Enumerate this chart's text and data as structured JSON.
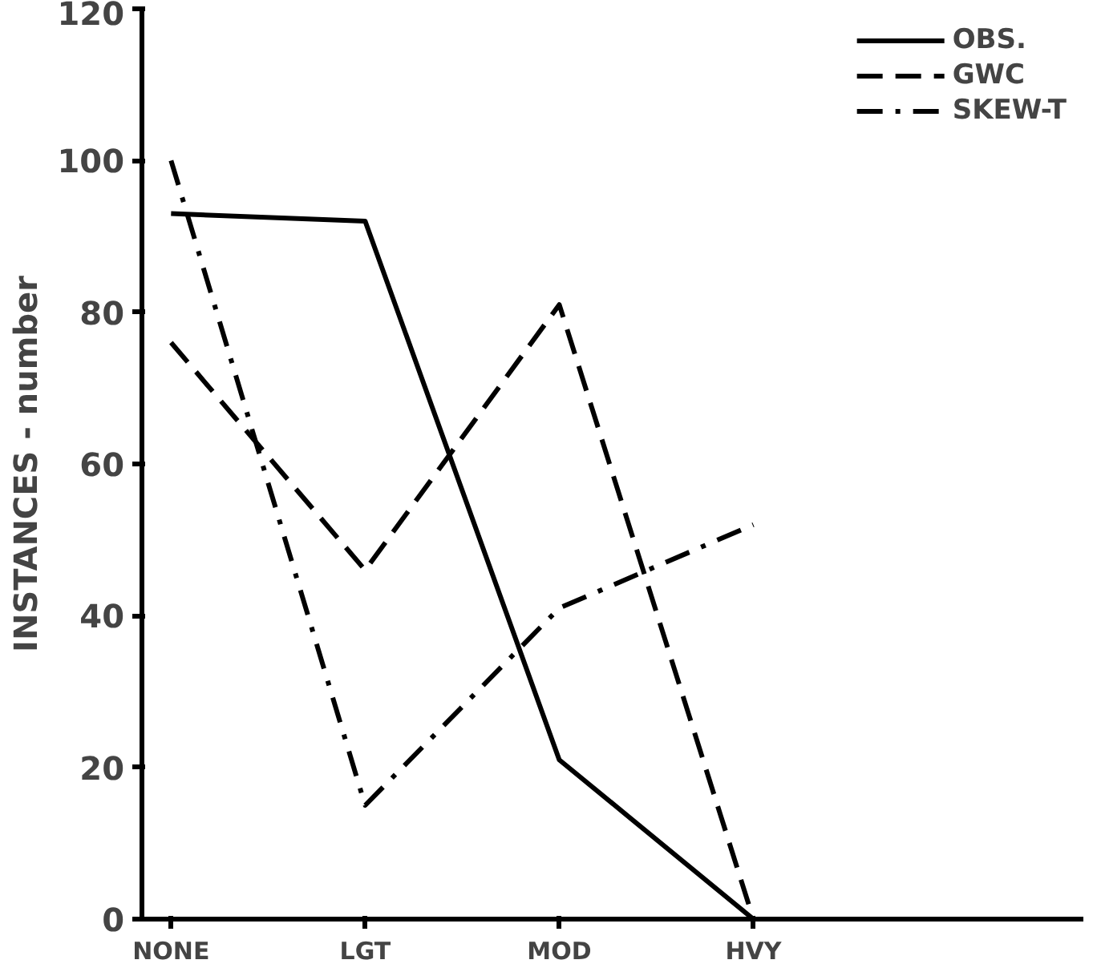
{
  "chart_data": {
    "type": "line",
    "ylabel": "INSTANCES - number",
    "categories": [
      "NONE",
      "LGT",
      "MOD",
      "HVY"
    ],
    "ylim": [
      0,
      120
    ],
    "yticks": [
      0,
      20,
      40,
      60,
      80,
      100,
      120
    ],
    "grid": false,
    "legend": "top right",
    "marker": "none",
    "series": [
      {
        "name": "OBS.",
        "color": "#000000",
        "line_style": "solid",
        "values": [
          93,
          92,
          21,
          0
        ]
      },
      {
        "name": "GWC",
        "color": "#000000",
        "line_style": "dashed",
        "values": [
          76,
          46,
          81,
          0
        ]
      },
      {
        "name": "SKEW-T",
        "color": "#000000",
        "line_style": "dashdot",
        "values": [
          100,
          15,
          41,
          52
        ]
      }
    ]
  }
}
